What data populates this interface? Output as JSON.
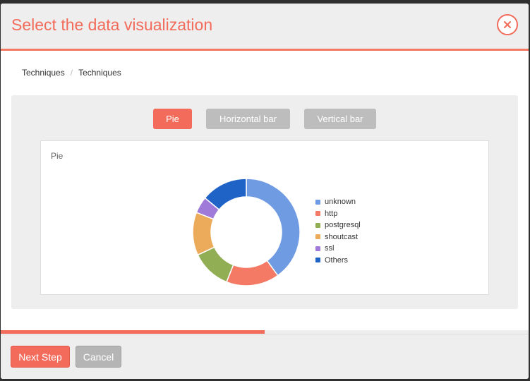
{
  "modal": {
    "title": "Select the data visualization",
    "close_icon": "close-icon"
  },
  "breadcrumb": {
    "items": [
      "Techniques",
      "Techniques"
    ],
    "separator": "/"
  },
  "viz_types": {
    "pie": "Pie",
    "horizontal_bar": "Horizontal bar",
    "vertical_bar": "Vertical bar",
    "selected": "Pie"
  },
  "progress": {
    "value_percent": 50
  },
  "footer": {
    "next_label": "Next Step",
    "cancel_label": "Cancel"
  },
  "colors": {
    "accent": "#f26b5b",
    "inactive": "#bdbdbd"
  },
  "chart_data": {
    "type": "pie",
    "title": "Pie",
    "donut": true,
    "legend_position": "right",
    "series": [
      {
        "name": "unknown",
        "value": 40,
        "color": "#6f9be3"
      },
      {
        "name": "http",
        "value": 16,
        "color": "#f47a66"
      },
      {
        "name": "postgresql",
        "value": 12,
        "color": "#92ae55"
      },
      {
        "name": "shoutcast",
        "value": 13,
        "color": "#ecaa5b"
      },
      {
        "name": "ssl",
        "value": 5,
        "color": "#a07ad8"
      },
      {
        "name": "Others",
        "value": 14,
        "color": "#1f63c6"
      }
    ]
  }
}
